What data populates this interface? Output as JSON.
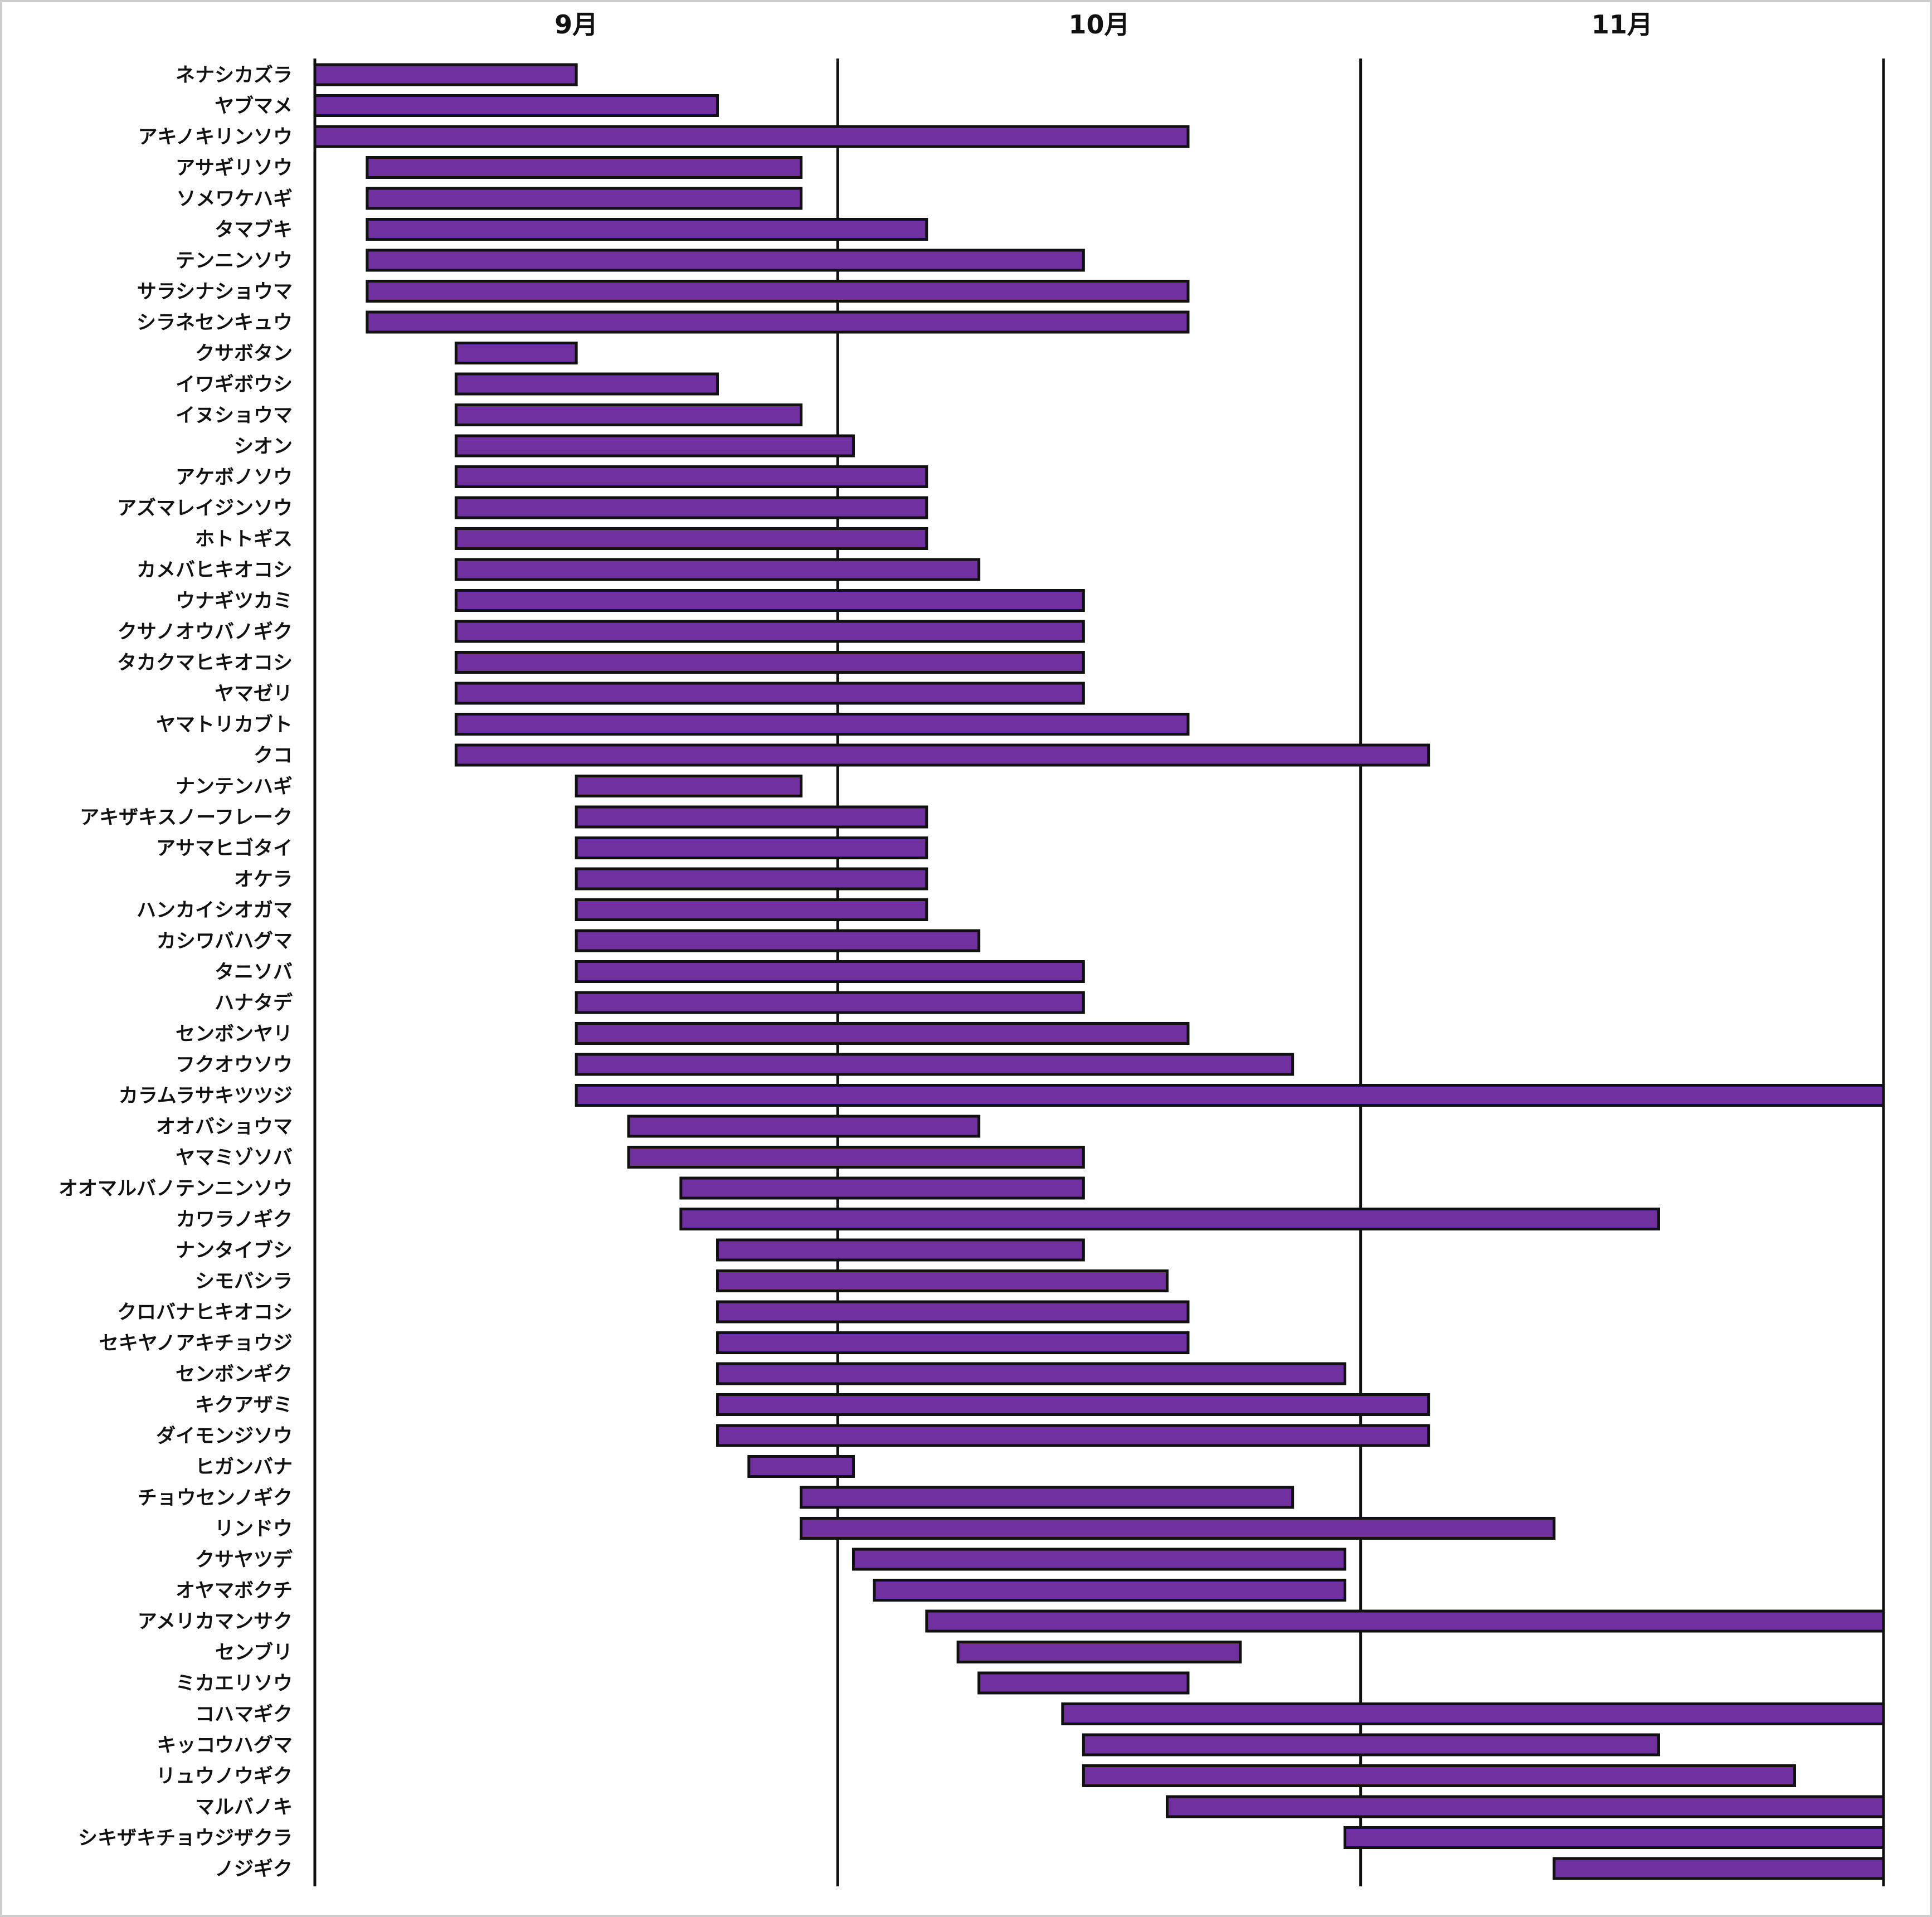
{
  "chart_data": {
    "type": "gantt",
    "title": "",
    "x_unit": "月",
    "x_domain": [
      8.5,
      11.5
    ],
    "month_ticks": [
      {
        "label": "9月",
        "center": 9
      },
      {
        "label": "10月",
        "center": 10
      },
      {
        "label": "11月",
        "center": 11
      }
    ],
    "gridlines": [
      9.5,
      10.5,
      11.5
    ],
    "bar_color": "#7030a0",
    "series": [
      {
        "name": "ネナシカズラ",
        "start": 8.5,
        "end": 9.0
      },
      {
        "name": "ヤブマメ",
        "start": 8.5,
        "end": 9.27
      },
      {
        "name": "アキノキリンソウ",
        "start": 8.5,
        "end": 10.17
      },
      {
        "name": "アサギリソウ",
        "start": 8.6,
        "end": 9.43
      },
      {
        "name": "ソメワケハギ",
        "start": 8.6,
        "end": 9.43
      },
      {
        "name": "タマブキ",
        "start": 8.6,
        "end": 9.67
      },
      {
        "name": "テンニンソウ",
        "start": 8.6,
        "end": 9.97
      },
      {
        "name": "サラシナショウマ",
        "start": 8.6,
        "end": 10.17
      },
      {
        "name": "シラネセンキュウ",
        "start": 8.6,
        "end": 10.17
      },
      {
        "name": "クサボタン",
        "start": 8.77,
        "end": 9.0
      },
      {
        "name": "イワギボウシ",
        "start": 8.77,
        "end": 9.27
      },
      {
        "name": "イヌショウマ",
        "start": 8.77,
        "end": 9.43
      },
      {
        "name": "シオン",
        "start": 8.77,
        "end": 9.53
      },
      {
        "name": "アケボノソウ",
        "start": 8.77,
        "end": 9.67
      },
      {
        "name": "アズマレイジンソウ",
        "start": 8.77,
        "end": 9.67
      },
      {
        "name": "ホトトギス",
        "start": 8.77,
        "end": 9.67
      },
      {
        "name": "カメバヒキオコシ",
        "start": 8.77,
        "end": 9.77
      },
      {
        "name": "ウナギツカミ",
        "start": 8.77,
        "end": 9.97
      },
      {
        "name": "クサノオウバノギク",
        "start": 8.77,
        "end": 9.97
      },
      {
        "name": "タカクマヒキオコシ",
        "start": 8.77,
        "end": 9.97
      },
      {
        "name": "ヤマゼリ",
        "start": 8.77,
        "end": 9.97
      },
      {
        "name": "ヤマトリカブト",
        "start": 8.77,
        "end": 10.17
      },
      {
        "name": "クコ",
        "start": 8.77,
        "end": 10.63
      },
      {
        "name": "ナンテンハギ",
        "start": 9.0,
        "end": 9.43
      },
      {
        "name": "アキザキスノーフレーク",
        "start": 9.0,
        "end": 9.67
      },
      {
        "name": "アサマヒゴタイ",
        "start": 9.0,
        "end": 9.67
      },
      {
        "name": "オケラ",
        "start": 9.0,
        "end": 9.67
      },
      {
        "name": "ハンカイシオガマ",
        "start": 9.0,
        "end": 9.67
      },
      {
        "name": "カシワバハグマ",
        "start": 9.0,
        "end": 9.77
      },
      {
        "name": "タニソバ",
        "start": 9.0,
        "end": 9.97
      },
      {
        "name": "ハナタデ",
        "start": 9.0,
        "end": 9.97
      },
      {
        "name": "センボンヤリ",
        "start": 9.0,
        "end": 10.17
      },
      {
        "name": "フクオウソウ",
        "start": 9.0,
        "end": 10.37
      },
      {
        "name": "カラムラサキツツジ",
        "start": 9.0,
        "end": 11.5
      },
      {
        "name": "オオバショウマ",
        "start": 9.1,
        "end": 9.77
      },
      {
        "name": "ヤマミゾソバ",
        "start": 9.1,
        "end": 9.97
      },
      {
        "name": "オオマルバノテンニンソウ",
        "start": 9.2,
        "end": 9.97
      },
      {
        "name": "カワラノギク",
        "start": 9.2,
        "end": 11.07
      },
      {
        "name": "ナンタイブシ",
        "start": 9.27,
        "end": 9.97
      },
      {
        "name": "シモバシラ",
        "start": 9.27,
        "end": 10.13
      },
      {
        "name": "クロバナヒキオコシ",
        "start": 9.27,
        "end": 10.17
      },
      {
        "name": "セキヤノアキチョウジ",
        "start": 9.27,
        "end": 10.17
      },
      {
        "name": "センボンギク",
        "start": 9.27,
        "end": 10.47
      },
      {
        "name": "キクアザミ",
        "start": 9.27,
        "end": 10.63
      },
      {
        "name": "ダイモンジソウ",
        "start": 9.27,
        "end": 10.63
      },
      {
        "name": "ヒガンバナ",
        "start": 9.33,
        "end": 9.53
      },
      {
        "name": "チョウセンノギク",
        "start": 9.43,
        "end": 10.37
      },
      {
        "name": "リンドウ",
        "start": 9.43,
        "end": 10.87
      },
      {
        "name": "クサヤツデ",
        "start": 9.53,
        "end": 10.47
      },
      {
        "name": "オヤマボクチ",
        "start": 9.57,
        "end": 10.47
      },
      {
        "name": "アメリカマンサク",
        "start": 9.67,
        "end": 11.5
      },
      {
        "name": "センブリ",
        "start": 9.73,
        "end": 10.27
      },
      {
        "name": "ミカエリソウ",
        "start": 9.77,
        "end": 10.17
      },
      {
        "name": "コハマギク",
        "start": 9.93,
        "end": 11.5
      },
      {
        "name": "キッコウハグマ",
        "start": 9.97,
        "end": 11.07
      },
      {
        "name": "リュウノウギク",
        "start": 9.97,
        "end": 11.33
      },
      {
        "name": "マルバノキ",
        "start": 10.13,
        "end": 11.5
      },
      {
        "name": "シキザキチョウジザクラ",
        "start": 10.47,
        "end": 11.5
      },
      {
        "name": "ノジギク",
        "start": 10.87,
        "end": 11.5
      }
    ]
  }
}
